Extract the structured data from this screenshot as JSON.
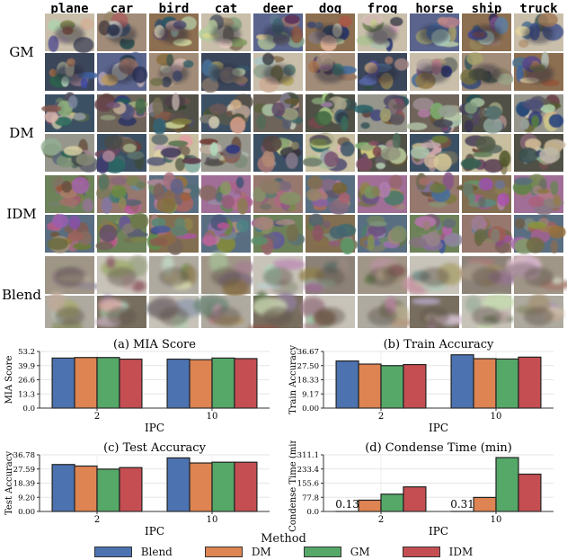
{
  "grid": {
    "classes": [
      "plane",
      "car",
      "bird",
      "cat",
      "deer",
      "dog",
      "frog",
      "horse",
      "ship",
      "truck"
    ],
    "methods": [
      "GM",
      "DM",
      "IDM",
      "Blend"
    ]
  },
  "legend": {
    "title": "Method",
    "items": [
      {
        "label": "Blend",
        "color": "#4c72b0"
      },
      {
        "label": "DM",
        "color": "#dd8452"
      },
      {
        "label": "GM",
        "color": "#55a868"
      },
      {
        "label": "IDM",
        "color": "#c44e52"
      }
    ]
  },
  "chart_data": [
    {
      "type": "bar",
      "title": "(a)   MIA Score",
      "xlabel": "IPC",
      "ylabel": "MIA Score",
      "categories": [
        "2",
        "10"
      ],
      "yticks": [
        "0.0",
        "13.3",
        "26.6",
        "39.9",
        "53.2"
      ],
      "ylim": [
        0,
        53.2
      ],
      "series": [
        {
          "name": "Blend",
          "values": [
            47.0,
            46.0
          ]
        },
        {
          "name": "DM",
          "values": [
            47.5,
            45.5
          ]
        },
        {
          "name": "GM",
          "values": [
            47.5,
            47.0
          ]
        },
        {
          "name": "IDM",
          "values": [
            46.0,
            46.5
          ]
        }
      ],
      "annotations": []
    },
    {
      "type": "bar",
      "title": "(b)   Train Accuracy",
      "xlabel": "IPC",
      "ylabel": "Train Accuracy",
      "categories": [
        "2",
        "10"
      ],
      "yticks": [
        "0.00",
        "9.17",
        "18.33",
        "27.50",
        "36.67"
      ],
      "ylim": [
        0,
        36.67
      ],
      "series": [
        {
          "name": "Blend",
          "values": [
            30.5,
            34.5
          ]
        },
        {
          "name": "DM",
          "values": [
            28.5,
            32.0
          ]
        },
        {
          "name": "GM",
          "values": [
            27.5,
            31.8
          ]
        },
        {
          "name": "IDM",
          "values": [
            28.2,
            33.0
          ]
        }
      ],
      "annotations": []
    },
    {
      "type": "bar",
      "title": "(c)   Test Accuracy",
      "xlabel": "IPC",
      "ylabel": "Test Accuracy",
      "categories": [
        "2",
        "10"
      ],
      "yticks": [
        "0.00",
        "9.20",
        "18.39",
        "27.59",
        "36.78"
      ],
      "ylim": [
        0,
        36.78
      ],
      "series": [
        {
          "name": "Blend",
          "values": [
            30.5,
            34.8
          ]
        },
        {
          "name": "DM",
          "values": [
            29.5,
            31.5
          ]
        },
        {
          "name": "GM",
          "values": [
            27.5,
            32.0
          ]
        },
        {
          "name": "IDM",
          "values": [
            28.5,
            32.0
          ]
        }
      ],
      "annotations": []
    },
    {
      "type": "bar",
      "title": "(d)   Condense Time (min)",
      "xlabel": "IPC",
      "ylabel": "Condense Time (min)",
      "categories": [
        "2",
        "10"
      ],
      "yticks": [
        "0.0",
        "77.8",
        "155.6",
        "233.4",
        "311.1"
      ],
      "ylim": [
        0,
        311.1
      ],
      "series": [
        {
          "name": "Blend",
          "values": [
            0.13,
            0.31
          ]
        },
        {
          "name": "DM",
          "values": [
            62,
            77
          ]
        },
        {
          "name": "GM",
          "values": [
            95,
            296
          ]
        },
        {
          "name": "IDM",
          "values": [
            135,
            205
          ]
        }
      ],
      "annotations": [
        "0.13",
        "0.31"
      ]
    }
  ]
}
